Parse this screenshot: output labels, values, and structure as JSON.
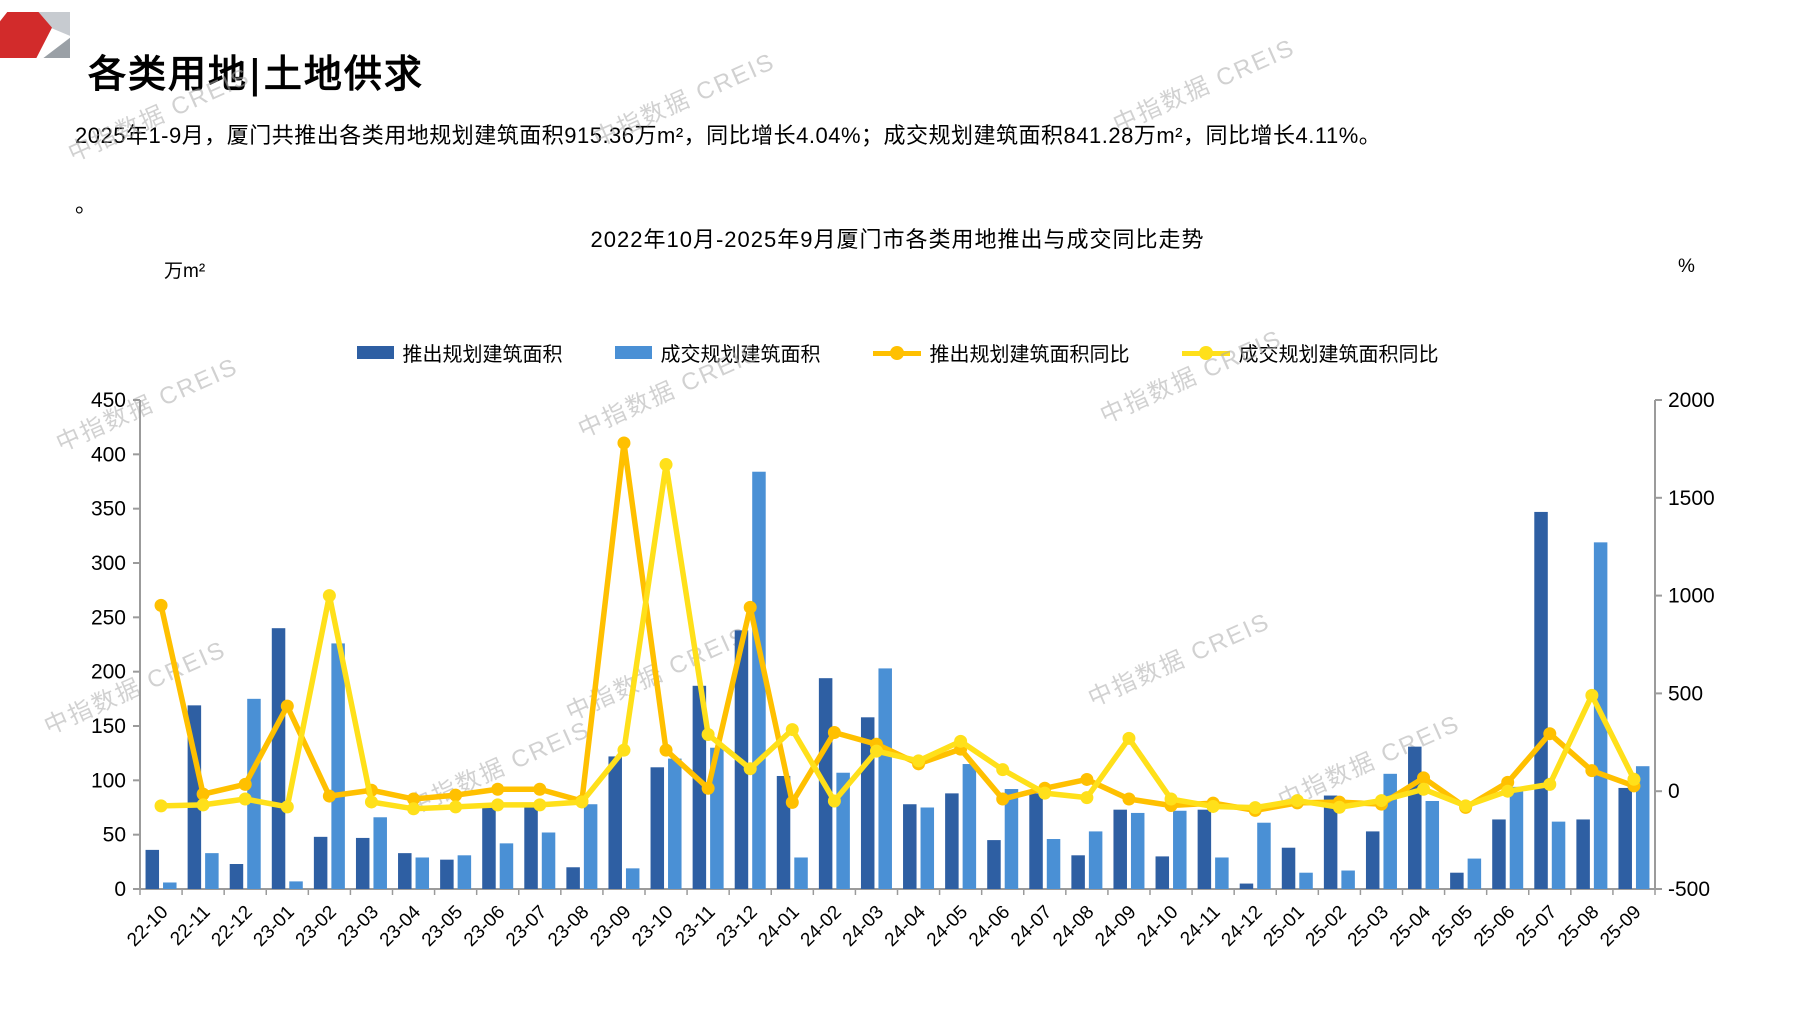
{
  "header": {
    "title": "各类用地|土地供求"
  },
  "summary": {
    "line1": "2025年1-9月，厦门共推出各类用地规划建筑面积915.36万m²，同比增长4.04%；成交规划建筑面积841.28万m²，同比增长4.11%。",
    "line2": "。"
  },
  "watermark": {
    "text": "中指数据 CREIS"
  },
  "chart_data": {
    "type": "bar",
    "subtype": "dual-axis bar + line (YoY)",
    "title": "2022年10月-2025年9月厦门市各类用地推出与成交同比走势",
    "grid": false,
    "legend_position": "top",
    "left_axis": {
      "unit": "万m²",
      "min": 0,
      "max": 450,
      "step": 50
    },
    "right_axis": {
      "unit": "%",
      "min": -500,
      "max": 2000,
      "step": 500
    },
    "categories": [
      "22-10",
      "22-11",
      "22-12",
      "23-01",
      "23-02",
      "23-03",
      "23-04",
      "23-05",
      "23-06",
      "23-07",
      "23-08",
      "23-09",
      "23-10",
      "23-11",
      "23-12",
      "24-01",
      "24-02",
      "24-03",
      "24-04",
      "24-05",
      "24-06",
      "24-07",
      "24-08",
      "24-09",
      "24-10",
      "24-11",
      "24-12",
      "25-01",
      "25-02",
      "25-03",
      "25-04",
      "25-05",
      "25-06",
      "25-07",
      "25-08",
      "25-09"
    ],
    "series": [
      {
        "name": "推出规划建筑面积",
        "type": "bar",
        "axis": "left",
        "color": "#2E5FA3",
        "values": [
          36,
          169,
          23,
          240,
          48,
          47,
          33,
          27,
          75,
          78,
          20,
          122,
          112,
          187,
          238,
          104,
          194,
          158,
          78,
          88,
          45,
          88,
          31,
          73,
          30,
          73,
          5,
          38,
          86,
          53,
          131,
          15,
          64,
          347,
          64,
          93
        ]
      },
      {
        "name": "成交规划建筑面积",
        "type": "bar",
        "axis": "left",
        "color": "#4A90D5",
        "values": [
          6,
          33,
          175,
          7,
          226,
          66,
          29,
          31,
          42,
          52,
          78,
          19,
          120,
          130,
          384,
          29,
          107,
          203,
          75,
          115,
          92,
          46,
          53,
          70,
          72,
          29,
          61,
          15,
          17,
          106,
          81,
          28,
          94,
          62,
          319,
          113
        ]
      },
      {
        "name": "推出规划建筑面积同比",
        "type": "line",
        "axis": "right",
        "color": "#FFC000",
        "values": [
          950,
          -15,
          35,
          435,
          -25,
          5,
          -40,
          -20,
          10,
          10,
          -50,
          1780,
          210,
          15,
          940,
          -57,
          300,
          240,
          140,
          215,
          -40,
          15,
          60,
          -40,
          -73,
          -61,
          -98,
          -60,
          -56,
          -66,
          68,
          -83,
          45,
          294,
          105,
          27
        ]
      },
      {
        "name": "成交规划建筑面积同比",
        "type": "line",
        "axis": "right",
        "color": "#FFE01A",
        "values": [
          -75,
          -70,
          -40,
          -80,
          1000,
          -55,
          -90,
          -80,
          -70,
          -70,
          -55,
          210,
          1670,
          290,
          115,
          315,
          -50,
          205,
          155,
          255,
          110,
          -10,
          -33,
          270,
          -40,
          -78,
          -84,
          -48,
          -82,
          -48,
          10,
          -75,
          0,
          35,
          490,
          61
        ]
      }
    ]
  }
}
